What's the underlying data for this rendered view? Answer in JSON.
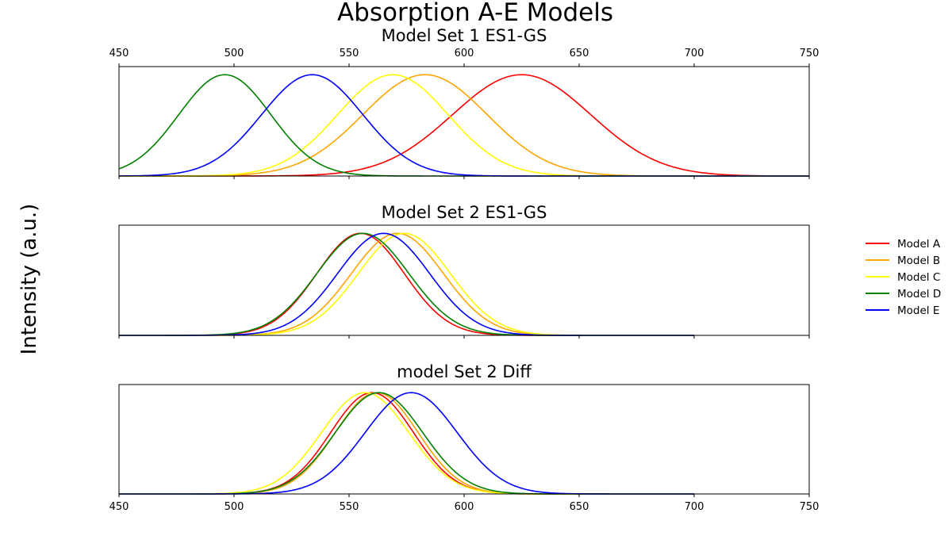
{
  "suptitle": "Absorption A-E Models",
  "ylabel": "Intensity (a.u.)",
  "xticks": [
    "450",
    "500",
    "550",
    "600",
    "650",
    "700",
    "750"
  ],
  "legend": [
    {
      "label": "Model A",
      "color": "#ff0000"
    },
    {
      "label": "Model B",
      "color": "#ffa500"
    },
    {
      "label": "Model C",
      "color": "#ffff00"
    },
    {
      "label": "Model D",
      "color": "#008000"
    },
    {
      "label": "Model E",
      "color": "#0000ff"
    }
  ],
  "chart_data": [
    {
      "type": "line",
      "title": "Model Set 1 ES1-GS",
      "xlim": [
        450,
        750
      ],
      "ylim": [
        0,
        1.08
      ],
      "x_range": [
        450,
        750
      ],
      "series": [
        {
          "name": "Model A",
          "color": "#ff0000",
          "center": 625,
          "sigma": 30
        },
        {
          "name": "Model B",
          "color": "#ffa500",
          "center": 583,
          "sigma": 27
        },
        {
          "name": "Model C",
          "color": "#ffff00",
          "center": 569,
          "sigma": 24
        },
        {
          "name": "Model D",
          "color": "#008000",
          "center": 496,
          "sigma": 20
        },
        {
          "name": "Model E",
          "color": "#0000ff",
          "center": 534,
          "sigma": 22
        }
      ]
    },
    {
      "type": "line",
      "title": "Model Set 2 ES1-GS",
      "xlim": [
        450,
        750
      ],
      "ylim": [
        0,
        1.08
      ],
      "x_range": [
        450,
        700
      ],
      "series": [
        {
          "name": "Model A",
          "color": "#ff0000",
          "center": 555,
          "sigma": 19
        },
        {
          "name": "Model B",
          "color": "#ffa500",
          "center": 571,
          "sigma": 20
        },
        {
          "name": "Model C",
          "color": "#ffff00",
          "center": 574,
          "sigma": 20
        },
        {
          "name": "Model D",
          "color": "#008000",
          "center": 556,
          "sigma": 20
        },
        {
          "name": "Model E",
          "color": "#0000ff",
          "center": 565,
          "sigma": 20
        }
      ]
    },
    {
      "type": "line",
      "title": "model Set 2 Diff",
      "xlim": [
        450,
        750
      ],
      "ylim": [
        0,
        1.08
      ],
      "x_range": [
        450,
        700
      ],
      "series": [
        {
          "name": "Model A",
          "color": "#ff0000",
          "center": 560,
          "sigma": 18
        },
        {
          "name": "Model B",
          "color": "#ffa500",
          "center": 562,
          "sigma": 18
        },
        {
          "name": "Model C",
          "color": "#ffff00",
          "center": 557,
          "sigma": 19
        },
        {
          "name": "Model D",
          "color": "#008000",
          "center": 563,
          "sigma": 19
        },
        {
          "name": "Model E",
          "color": "#0000ff",
          "center": 577,
          "sigma": 20
        }
      ]
    }
  ]
}
